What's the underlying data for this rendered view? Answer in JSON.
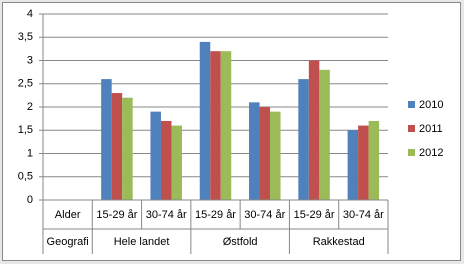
{
  "chart_data": {
    "type": "bar",
    "categories": [
      "Alder",
      "15-29 år",
      "30-74 år",
      "15-29 år",
      "30-74 år",
      "15-29 år",
      "30-74 år"
    ],
    "group_labels": [
      "Geografi",
      "Hele landet",
      null,
      "Østfold",
      null,
      "Rakkestad",
      null
    ],
    "series": [
      {
        "name": "2010",
        "color": "#4f81bd",
        "values": [
          null,
          2.6,
          1.9,
          3.4,
          2.1,
          2.6,
          1.5
        ]
      },
      {
        "name": "2011",
        "color": "#c0504d",
        "values": [
          null,
          2.3,
          1.7,
          3.2,
          2.0,
          3.0,
          1.6
        ]
      },
      {
        "name": "2012",
        "color": "#9bbb59",
        "values": [
          null,
          2.2,
          1.6,
          3.2,
          1.9,
          2.8,
          1.7
        ]
      }
    ],
    "ylim": [
      0,
      4
    ],
    "yticks": [
      0,
      {
        "value": 0.5,
        "label": "0,5"
      },
      1,
      {
        "value": 1.5,
        "label": "1,5"
      },
      2,
      {
        "value": 2.5,
        "label": "2,5"
      },
      3,
      {
        "value": 3.5,
        "label": "3,5"
      },
      4
    ],
    "grid": true,
    "legend": "right"
  }
}
